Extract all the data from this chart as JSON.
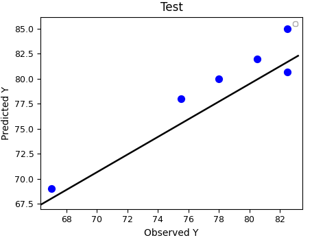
{
  "title": "Test",
  "xlabel": "Observed Y",
  "ylabel": "Predicted Y",
  "scatter_x": [
    67.0,
    75.5,
    78.0,
    80.5,
    82.5,
    82.5
  ],
  "scatter_y": [
    69.0,
    78.0,
    80.0,
    82.0,
    85.0,
    80.7
  ],
  "scatter_color": "#0000ff",
  "scatter_size": 50,
  "line_x": [
    66.3,
    83.2
  ],
  "line_y": [
    67.4,
    82.3
  ],
  "line_color": "#000000",
  "line_width": 1.8,
  "xlim": [
    66.3,
    83.5
  ],
  "ylim": [
    67.0,
    86.2
  ],
  "xticks": [
    68,
    70,
    72,
    74,
    76,
    78,
    80,
    82
  ],
  "yticks": [
    67.5,
    70.0,
    72.5,
    75.0,
    77.5,
    80.0,
    82.5,
    85.0
  ],
  "background_color": "#ffffff",
  "title_fontsize": 12,
  "label_fontsize": 10,
  "tick_fontsize": 9
}
